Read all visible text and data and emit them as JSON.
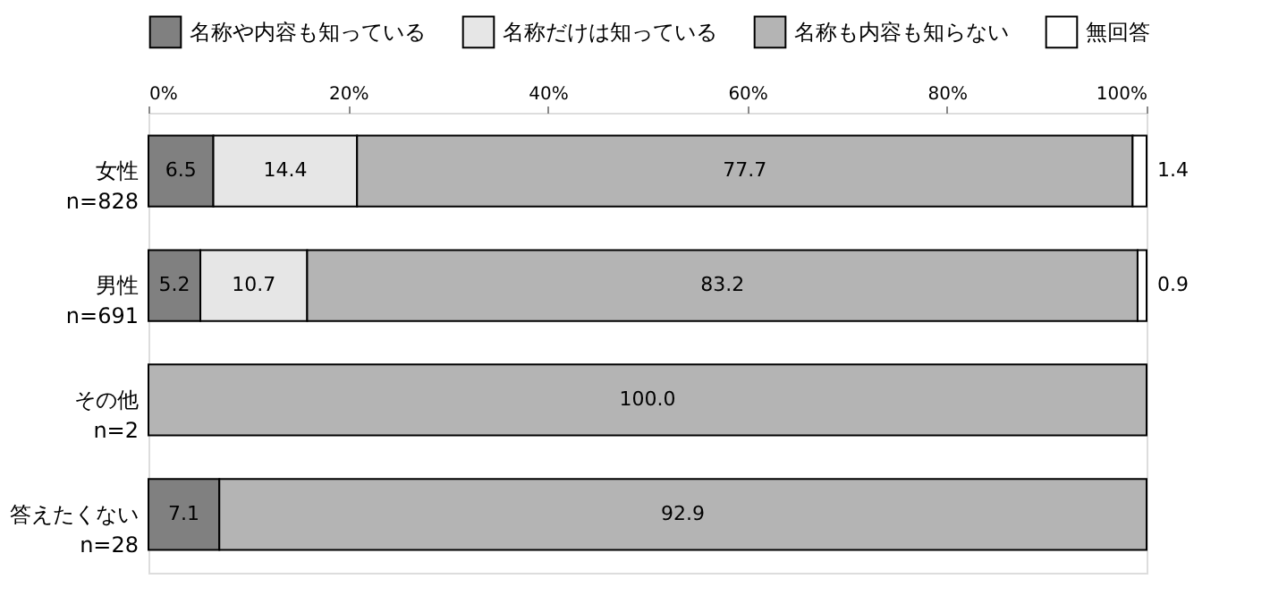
{
  "chart_data": {
    "type": "bar",
    "orientation": "horizontal",
    "stacked": true,
    "categories": [
      "女性\nn=828",
      "男性\nn=691",
      "その他\nn=2",
      "答えたくない\nn=28"
    ],
    "series": [
      {
        "name": "名称や内容も知っている",
        "color": "#808080",
        "values": [
          6.5,
          5.2,
          null,
          7.1
        ],
        "value_labels": [
          "6.5",
          "5.2",
          null,
          "7.1"
        ]
      },
      {
        "name": "名称だけは知っている",
        "color": "#e6e6e6",
        "values": [
          14.4,
          10.7,
          null,
          null
        ],
        "value_labels": [
          "14.4",
          "10.7",
          null,
          null
        ]
      },
      {
        "name": "名称も内容も知らない",
        "color": "#b4b4b4",
        "values": [
          77.7,
          83.2,
          100.0,
          92.9
        ],
        "value_labels": [
          "77.7",
          "83.2",
          "100.0",
          "92.9"
        ]
      },
      {
        "name": "無回答",
        "color": "#ffffff",
        "values": [
          1.4,
          0.9,
          null,
          null
        ],
        "value_labels": [
          "1.4",
          "0.9",
          null,
          null
        ]
      }
    ],
    "xlim": [
      0,
      100
    ],
    "xticks": [
      {
        "value": 0,
        "label": "0%"
      },
      {
        "value": 20,
        "label": "20%"
      },
      {
        "value": 40,
        "label": "40%"
      },
      {
        "value": 60,
        "label": "60%"
      },
      {
        "value": 80,
        "label": "80%"
      },
      {
        "value": 100,
        "label": "100%"
      }
    ],
    "grid": false,
    "legend": "top"
  }
}
